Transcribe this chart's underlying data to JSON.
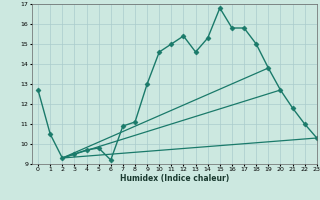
{
  "background_color": "#cce8e0",
  "grid_color": "#aacccc",
  "line_color": "#1a7a6a",
  "xlabel": "Humidex (Indice chaleur)",
  "xlim": [
    -0.5,
    23
  ],
  "ylim": [
    9,
    17
  ],
  "yticks": [
    9,
    10,
    11,
    12,
    13,
    14,
    15,
    16,
    17
  ],
  "xticks": [
    0,
    1,
    2,
    3,
    4,
    5,
    6,
    7,
    8,
    9,
    10,
    11,
    12,
    13,
    14,
    15,
    16,
    17,
    18,
    19,
    20,
    21,
    22,
    23
  ],
  "lines": [
    {
      "x": [
        0,
        1,
        2,
        3,
        4,
        5,
        6,
        7,
        8,
        9,
        10,
        11,
        12,
        13,
        14,
        15,
        16,
        17,
        18,
        19,
        20,
        21,
        22,
        23
      ],
      "y": [
        12.7,
        10.5,
        9.3,
        9.5,
        9.7,
        9.8,
        9.2,
        10.9,
        11.1,
        13.0,
        14.6,
        15.0,
        15.4,
        14.6,
        15.3,
        16.8,
        15.8,
        15.8,
        15.0,
        13.8,
        12.7,
        11.8,
        11.0,
        10.3
      ],
      "marker": "D",
      "markersize": 2.5,
      "linewidth": 1.0
    },
    {
      "x": [
        2,
        23
      ],
      "y": [
        9.3,
        10.3
      ],
      "marker": null,
      "markersize": 0,
      "linewidth": 0.9
    },
    {
      "x": [
        2,
        20
      ],
      "y": [
        9.3,
        12.7
      ],
      "marker": null,
      "markersize": 0,
      "linewidth": 0.9
    },
    {
      "x": [
        2,
        19
      ],
      "y": [
        9.3,
        13.8
      ],
      "marker": null,
      "markersize": 0,
      "linewidth": 0.9
    }
  ]
}
